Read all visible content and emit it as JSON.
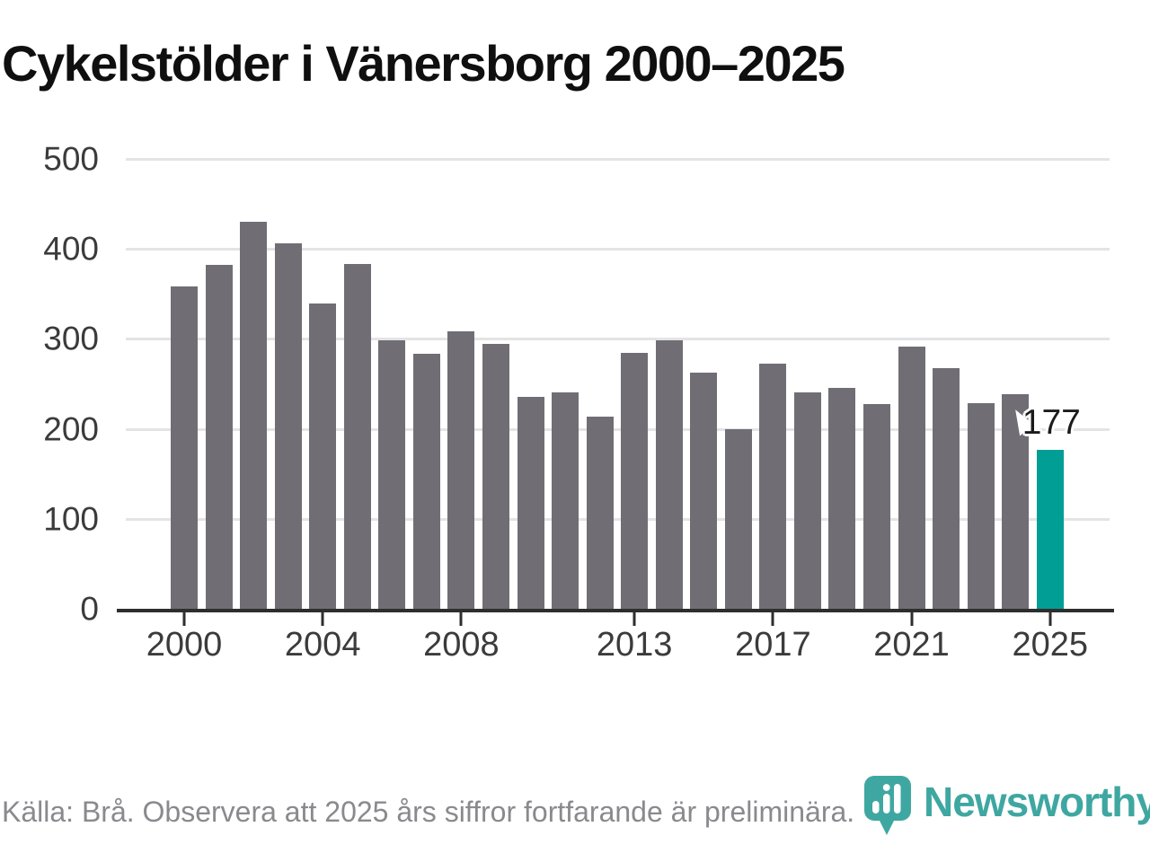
{
  "title": "Cykelstölder i Vänersborg 2000–2025",
  "chart_data": {
    "type": "bar",
    "x": [
      2000,
      2001,
      2002,
      2003,
      2004,
      2005,
      2006,
      2007,
      2008,
      2009,
      2010,
      2011,
      2012,
      2013,
      2014,
      2015,
      2016,
      2017,
      2018,
      2019,
      2020,
      2021,
      2022,
      2023,
      2024,
      2025
    ],
    "values": [
      358,
      382,
      430,
      406,
      339,
      383,
      298,
      283,
      308,
      294,
      236,
      241,
      214,
      284,
      298,
      262,
      200,
      272,
      241,
      246,
      228,
      291,
      267,
      229,
      239,
      177
    ],
    "title": "Cykelstölder i Vänersborg 2000–2025",
    "xlabel": "",
    "ylabel": "",
    "ylim": [
      0,
      500
    ],
    "yticks": [
      0,
      100,
      200,
      300,
      400,
      500
    ],
    "xticks": [
      "2000",
      "2004",
      "2008",
      "2013",
      "2017",
      "2021",
      "2025"
    ],
    "grid": "horizontal",
    "legend": "none",
    "highlight": {
      "year": 2025,
      "value": 177,
      "data_label": "177"
    },
    "colors": {
      "bar": "#706e74",
      "highlight_bar": "#009e95",
      "gridline": "#e4e4e6",
      "axis": "#2e2e2e",
      "tick_text": "#3b3b3b",
      "annotation_text": "#1b1b1b"
    }
  },
  "footer": {
    "source_note": "Källa: Brå. Observera att 2025 års siffror fortfarande är preliminära."
  },
  "logo": {
    "wordmark": "Newsworthy",
    "icon": "newsworthy-speech-bubble-bar-chart-icon",
    "color": "#3fa7a1"
  }
}
